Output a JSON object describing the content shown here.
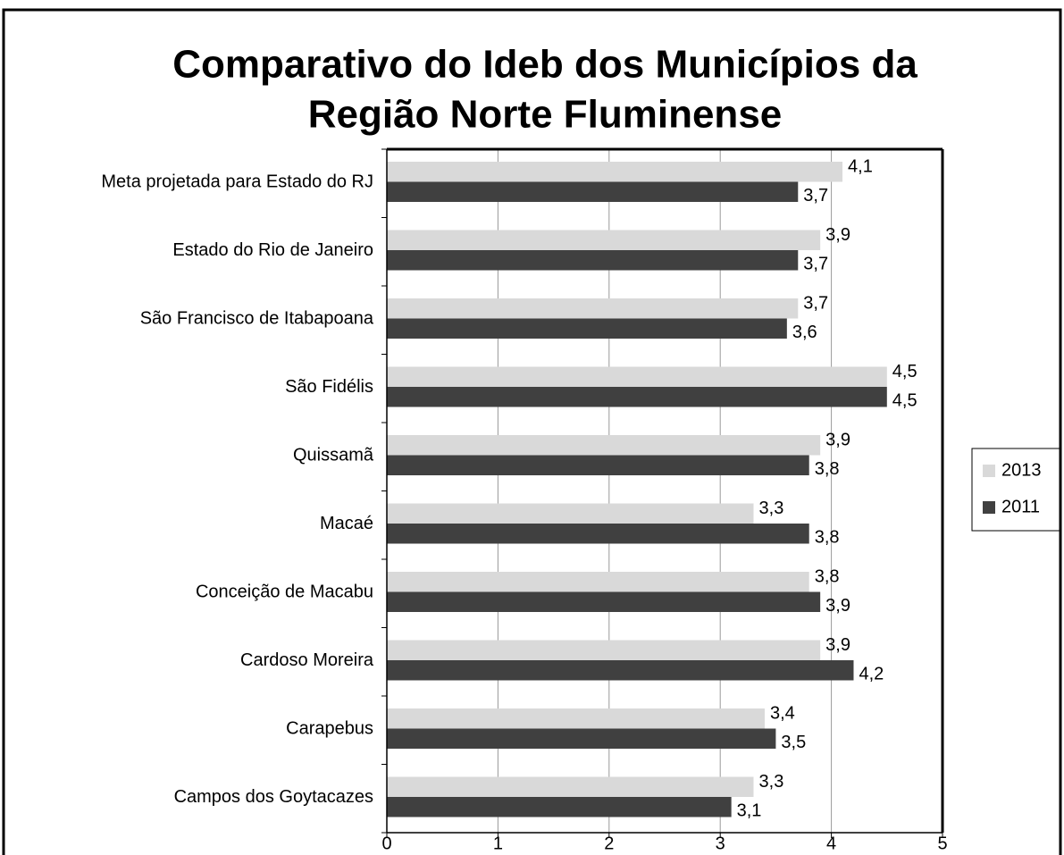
{
  "chart_data": {
    "type": "hbar",
    "title": [
      "Comparativo do Ideb dos Municípios da",
      "Região Norte Fluminense"
    ],
    "categories": [
      "Meta projetada para Estado do RJ",
      "Estado do Rio de Janeiro",
      "São Francisco de Itabapoana",
      "São Fidélis",
      "Quissamã",
      "Macaé",
      "Conceição de Macabu",
      "Cardoso Moreira",
      "Carapebus",
      "Campos dos Goytacazes"
    ],
    "series": [
      {
        "name": "2013",
        "color": "#d9d9d9",
        "values": [
          4.1,
          3.9,
          3.7,
          4.5,
          3.9,
          3.3,
          3.8,
          3.9,
          3.4,
          3.3
        ],
        "value_labels": [
          "4,1",
          "3,9",
          "3,7",
          "4,5",
          "3,9",
          "3,3",
          "3,8",
          "3,9",
          "3,4",
          "3,3"
        ]
      },
      {
        "name": "2011",
        "color": "#404040",
        "values": [
          3.7,
          3.7,
          3.6,
          4.5,
          3.8,
          3.8,
          3.9,
          4.2,
          3.5,
          3.1
        ],
        "value_labels": [
          "3,7",
          "3,7",
          "3,6",
          "4,5",
          "3,8",
          "3,8",
          "3,9",
          "4,2",
          "3,5",
          "3,1"
        ]
      }
    ],
    "xlim": [
      0,
      5
    ],
    "xticks": [
      0,
      1,
      2,
      3,
      4,
      5
    ],
    "grid": true,
    "legend": "right"
  }
}
